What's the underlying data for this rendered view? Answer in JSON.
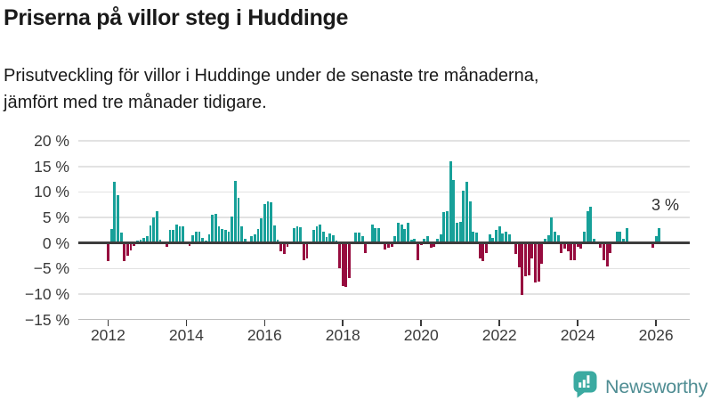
{
  "header": {
    "title": "Priserna på villor steg i Huddinge",
    "subtitle_line1": "Prisutveckling för villor i Huddinge under de senaste tre månaderna,",
    "subtitle_line2": "jämfört med tre månader tidigare."
  },
  "chart_data": {
    "type": "bar",
    "title": "Priserna på villor steg i Huddinge",
    "subtitle": "Prisutveckling för villor i Huddinge under de senaste tre månaderna, jämfört med tre månader tidigare.",
    "unit": "%",
    "frequency": "monthly",
    "start": "2012-01",
    "end": "2026-02",
    "values": [
      -3.6,
      2.8,
      12,
      9.3,
      2,
      -3.6,
      -2.5,
      -1.5,
      -0.5,
      0.4,
      0.6,
      1,
      1.3,
      3.5,
      5,
      6.2,
      0.7,
      0.3,
      -0.7,
      2.5,
      2.6,
      3.7,
      3.3,
      3.3,
      0.3,
      -0.5,
      1.5,
      2.3,
      2.3,
      1,
      0.5,
      1.7,
      5.5,
      5.7,
      3.3,
      2.7,
      2.6,
      2.3,
      5.2,
      12.2,
      8.8,
      3.2,
      0.8,
      0.2,
      1.3,
      1.7,
      2.7,
      4.8,
      7.7,
      8.1,
      7.9,
      3.4,
      0.6,
      -1.6,
      -2.2,
      -0.8,
      0,
      2.9,
      3.3,
      3.1,
      -3.4,
      -3.1,
      0,
      2.5,
      3.3,
      3.7,
      2.2,
      1.1,
      1.9,
      1.6,
      0.5,
      -4.9,
      -8.4,
      -8.7,
      -6.9,
      0,
      2,
      2,
      1.3,
      -2,
      -0.3,
      3.7,
      2.9,
      2.9,
      0,
      -1.2,
      -1,
      -0.7,
      1.3,
      3.9,
      3.7,
      2.7,
      3.9,
      0.7,
      0.8,
      -3.3,
      -0.4,
      0.8,
      1.3,
      -1,
      -0.8,
      0.8,
      1.7,
      6.1,
      6.3,
      16,
      12.3,
      3.9,
      4.1,
      10.2,
      12,
      8.2,
      2.2,
      2.1,
      -3,
      -3.6,
      -1.9,
      1.7,
      1,
      2.5,
      3.3,
      1.9,
      2.2,
      1.7,
      -0.3,
      -2.2,
      -4.8,
      -10.2,
      -6.6,
      -6.3,
      -3,
      -7.8,
      -7.5,
      -4,
      0.8,
      1.5,
      5.1,
      2.2,
      1.5,
      -2,
      -1.1,
      -1.7,
      -3.3,
      -3.3,
      -0.8,
      -1.1,
      2.2,
      6.3,
      7.1,
      0.8,
      0,
      -1,
      -3.4,
      -4.6,
      -2,
      0,
      2.2,
      2.2,
      0.8,
      2.9,
      0,
      0,
      0,
      0,
      0,
      0,
      0,
      -1,
      1.3,
      3
    ],
    "yticks": [
      20,
      15,
      10,
      5,
      0,
      -5,
      -10,
      -15
    ],
    "ytick_labels": [
      "20 %",
      "15 %",
      "10 %",
      "5 %",
      "0 %",
      "−5 %",
      "−10 %",
      "−15 %"
    ],
    "xticks": [
      2012,
      2014,
      2016,
      2018,
      2020,
      2022,
      2024,
      2026
    ],
    "ylim": [
      -15,
      20
    ],
    "grid": true,
    "legend_position": "none",
    "annotation": {
      "text": "3 %",
      "value": 3
    },
    "colors": {
      "positive": "#17a099",
      "negative": "#970c3f"
    }
  },
  "footer": {
    "brand": "Newsworthy",
    "logo_icon": "bar-chart-speech-bubble-icon",
    "logo_colors": {
      "bubble": "#3baaa1",
      "text": "#4f8d93"
    }
  }
}
